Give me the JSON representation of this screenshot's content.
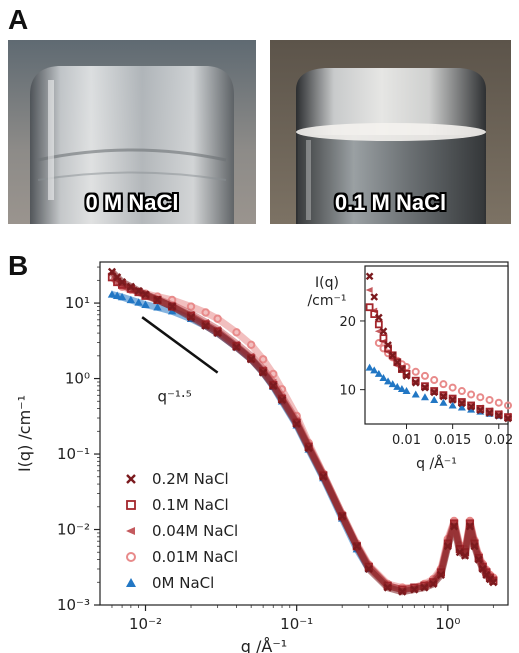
{
  "panels": {
    "a_letter": "A",
    "b_letter": "B"
  },
  "photos": [
    {
      "label": "0 M NaCl"
    },
    {
      "label": "0.1 M NaCl"
    }
  ],
  "colors": {
    "c02": "#7b1a1e",
    "c01": "#a3262c",
    "c004": "#c45a5e",
    "c001": "#e88a8a",
    "c0": "#2277c4"
  },
  "chart_data": [
    {
      "type": "scatter",
      "scale": "log-log",
      "xlabel": "q /Å⁻¹",
      "ylabel": "I(q) /cm⁻¹",
      "xlim": [
        0.005,
        2.5
      ],
      "ylim": [
        0.001,
        35
      ],
      "x_ticks": [
        {
          "value": 0.01,
          "label": "10⁻²"
        },
        {
          "value": 0.1,
          "label": "10⁻¹"
        },
        {
          "value": 1,
          "label": "10⁰"
        }
      ],
      "y_ticks": [
        {
          "value": 10,
          "label": "10¹"
        },
        {
          "value": 1,
          "label": "10⁰"
        },
        {
          "value": 0.1,
          "label": "10⁻¹"
        },
        {
          "value": 0.01,
          "label": "10⁻²"
        },
        {
          "value": 0.001,
          "label": "10⁻³"
        }
      ],
      "annotation": {
        "text": "q⁻¹·⁵",
        "line": [
          [
            0.0095,
            6.5
          ],
          [
            0.03,
            1.2
          ]
        ]
      },
      "legend_position": "lower-left",
      "series": [
        {
          "name": "0.2M NaCl",
          "marker": "x",
          "color": "#7b1a1e",
          "x": [
            0.006,
            0.0065,
            0.007,
            0.008,
            0.009,
            0.01,
            0.012,
            0.015,
            0.02,
            0.025,
            0.03,
            0.04,
            0.05,
            0.06,
            0.07,
            0.08,
            0.1,
            0.12,
            0.15,
            0.2,
            0.25,
            0.3,
            0.4,
            0.5,
            0.6,
            0.7,
            0.8,
            0.9,
            1.0,
            1.1,
            1.2,
            1.3,
            1.4,
            1.5,
            1.6,
            1.7,
            1.8,
            1.9,
            2.0
          ],
          "y": [
            26,
            22,
            19,
            16.5,
            14.5,
            13,
            11,
            9,
            6.5,
            5,
            4,
            2.6,
            1.8,
            1.2,
            0.8,
            0.52,
            0.25,
            0.12,
            0.05,
            0.015,
            0.006,
            0.003,
            0.0017,
            0.0015,
            0.0016,
            0.0017,
            0.0019,
            0.0025,
            0.006,
            0.011,
            0.005,
            0.0045,
            0.011,
            0.006,
            0.004,
            0.003,
            0.0025,
            0.0022,
            0.002
          ]
        },
        {
          "name": "0.1M NaCl",
          "marker": "square-open",
          "color": "#a3262c",
          "x": [
            0.006,
            0.0065,
            0.007,
            0.008,
            0.009,
            0.01,
            0.012,
            0.015,
            0.02,
            0.025,
            0.03,
            0.04,
            0.05,
            0.06,
            0.07,
            0.08,
            0.1,
            0.12,
            0.15,
            0.2,
            0.25,
            0.3,
            0.4,
            0.5,
            0.6,
            0.7,
            0.8,
            0.9,
            1.0,
            1.1,
            1.2,
            1.3,
            1.4,
            1.5,
            1.6,
            1.7,
            1.8,
            1.9,
            2.0
          ],
          "y": [
            22,
            19,
            17.5,
            15.5,
            14,
            12.5,
            11,
            9,
            6.8,
            5.2,
            4.2,
            2.7,
            1.85,
            1.25,
            0.82,
            0.54,
            0.26,
            0.125,
            0.052,
            0.015,
            0.006,
            0.0032,
            0.0018,
            0.0016,
            0.0017,
            0.0018,
            0.002,
            0.0027,
            0.0065,
            0.012,
            0.0055,
            0.005,
            0.012,
            0.0065,
            0.0042,
            0.0032,
            0.0027,
            0.0023,
            0.0021
          ]
        },
        {
          "name": "0.04M NaCl",
          "marker": "triangle-left",
          "color": "#c45a5e",
          "x": [
            0.006,
            0.0065,
            0.007,
            0.008,
            0.009,
            0.01,
            0.012,
            0.015,
            0.02,
            0.025,
            0.03,
            0.04,
            0.05,
            0.06,
            0.07,
            0.08,
            0.1,
            0.12,
            0.15,
            0.2,
            0.25,
            0.3,
            0.4,
            0.5,
            0.6,
            0.7,
            0.8,
            0.9,
            1.0,
            1.1,
            1.2,
            1.3,
            1.4,
            1.5,
            1.6,
            1.7,
            1.8,
            1.9,
            2.0
          ],
          "y": [
            25,
            20,
            17,
            15.5,
            14,
            13,
            11.3,
            9.5,
            7.2,
            5.6,
            4.5,
            2.9,
            2.0,
            1.35,
            0.9,
            0.58,
            0.28,
            0.13,
            0.054,
            0.016,
            0.0062,
            0.0033,
            0.0018,
            0.0016,
            0.0017,
            0.0018,
            0.0021,
            0.0028,
            0.0068,
            0.0125,
            0.0058,
            0.0052,
            0.0125,
            0.0068,
            0.0044,
            0.0033,
            0.0028,
            0.0024,
            0.0022
          ]
        },
        {
          "name": "0.01M NaCl",
          "marker": "circle-open",
          "color": "#e88a8a",
          "x": [
            0.007,
            0.008,
            0.009,
            0.01,
            0.012,
            0.015,
            0.02,
            0.025,
            0.03,
            0.04,
            0.05,
            0.06,
            0.07,
            0.08,
            0.1,
            0.12,
            0.15,
            0.2,
            0.25,
            0.3,
            0.4,
            0.5,
            0.6,
            0.7,
            0.8,
            0.9,
            1.0,
            1.1,
            1.2,
            1.3,
            1.4,
            1.5,
            1.6,
            1.7,
            1.8,
            1.9,
            2.0
          ],
          "y": [
            16.5,
            15,
            14,
            13.3,
            12.2,
            11,
            9,
            7.5,
            6.2,
            4.1,
            2.8,
            1.8,
            1.15,
            0.72,
            0.32,
            0.14,
            0.055,
            0.016,
            0.0065,
            0.0034,
            0.0019,
            0.0017,
            0.0017,
            0.0019,
            0.0022,
            0.003,
            0.0075,
            0.013,
            0.0062,
            0.0055,
            0.013,
            0.0072,
            0.0046,
            0.0035,
            0.0029,
            0.0025,
            0.0023
          ]
        },
        {
          "name": "0M NaCl",
          "marker": "triangle-up",
          "color": "#2277c4",
          "x": [
            0.006,
            0.0065,
            0.007,
            0.008,
            0.009,
            0.01,
            0.012,
            0.015,
            0.02,
            0.025,
            0.03,
            0.04,
            0.05,
            0.06,
            0.07,
            0.08,
            0.1,
            0.12,
            0.15,
            0.2,
            0.25,
            0.3
          ],
          "y": [
            13,
            12.5,
            12,
            11,
            10.2,
            9.5,
            8.8,
            7.8,
            6.2,
            5.0,
            4.0,
            2.6,
            1.8,
            1.2,
            0.78,
            0.5,
            0.24,
            0.115,
            0.048,
            0.014,
            0.0055,
            0.003
          ]
        }
      ]
    },
    {
      "type": "scatter",
      "scale": "linear",
      "inset": true,
      "xlabel": "q /Å⁻¹",
      "ylabel": "I(q) /cm⁻¹",
      "xlim": [
        0.0055,
        0.021
      ],
      "ylim": [
        5,
        28
      ],
      "x_ticks": [
        {
          "value": 0.01,
          "label": "0.01"
        },
        {
          "value": 0.015,
          "label": "0.015"
        },
        {
          "value": 0.02,
          "label": "0.02"
        }
      ],
      "y_ticks": [
        {
          "value": 10,
          "label": "10"
        },
        {
          "value": 20,
          "label": "20"
        }
      ],
      "series": [
        {
          "name": "0.2M NaCl",
          "marker": "x",
          "color": "#7b1a1e",
          "x": [
            0.006,
            0.0065,
            0.007,
            0.0075,
            0.008,
            0.0085,
            0.009,
            0.0095,
            0.01,
            0.011,
            0.012,
            0.013,
            0.014,
            0.015,
            0.016,
            0.017,
            0.018,
            0.019,
            0.02,
            0.021
          ],
          "y": [
            26.5,
            23.5,
            20.5,
            18.5,
            16.5,
            15,
            14,
            13,
            12,
            11,
            10.3,
            9.6,
            9,
            8.5,
            8,
            7.5,
            7,
            6.6,
            6.2,
            5.8
          ]
        },
        {
          "name": "0.1M NaCl",
          "marker": "square-open",
          "color": "#a3262c",
          "x": [
            0.006,
            0.0065,
            0.007,
            0.0075,
            0.008,
            0.0085,
            0.009,
            0.0095,
            0.01,
            0.011,
            0.012,
            0.013,
            0.014,
            0.015,
            0.016,
            0.017,
            0.018,
            0.019,
            0.02,
            0.021
          ],
          "y": [
            22,
            21,
            19.5,
            17.5,
            16,
            15,
            14,
            13,
            12.3,
            11.3,
            10.5,
            9.8,
            9.2,
            8.7,
            8.2,
            7.7,
            7.2,
            6.8,
            6.4,
            6
          ]
        },
        {
          "name": "0.04M NaCl",
          "marker": "triangle-left",
          "color": "#c45a5e",
          "x": [
            0.006,
            0.0065,
            0.007,
            0.0075,
            0.008,
            0.0085,
            0.009,
            0.0095,
            0.01,
            0.011,
            0.012,
            0.013,
            0.014,
            0.015,
            0.016,
            0.017,
            0.018,
            0.019,
            0.02,
            0.021
          ],
          "y": [
            24.5,
            21.5,
            18.5,
            17,
            15.5,
            14.5,
            13.5,
            12.8,
            12,
            11.2,
            10.5,
            9.9,
            9.3,
            8.8,
            8.3,
            7.8,
            7.4,
            7,
            6.6,
            6.2
          ]
        },
        {
          "name": "0.01M NaCl",
          "marker": "circle-open",
          "color": "#e88a8a",
          "x": [
            0.007,
            0.0075,
            0.008,
            0.0085,
            0.009,
            0.0095,
            0.01,
            0.011,
            0.012,
            0.013,
            0.014,
            0.015,
            0.016,
            0.017,
            0.018,
            0.019,
            0.02,
            0.021
          ],
          "y": [
            16.8,
            16,
            15.3,
            14.7,
            14.2,
            13.7,
            13.3,
            12.6,
            12,
            11.4,
            10.8,
            10.3,
            9.8,
            9.3,
            8.9,
            8.5,
            8.1,
            7.7
          ]
        },
        {
          "name": "0M NaCl",
          "marker": "triangle-up",
          "color": "#2277c4",
          "x": [
            0.006,
            0.0065,
            0.007,
            0.0075,
            0.008,
            0.0085,
            0.009,
            0.0095,
            0.01,
            0.011,
            0.012,
            0.013,
            0.014,
            0.015,
            0.016,
            0.017,
            0.018,
            0.019,
            0.02,
            0.021
          ],
          "y": [
            13.2,
            12.8,
            12.3,
            11.7,
            11.2,
            10.8,
            10.4,
            10.1,
            9.8,
            9.3,
            8.9,
            8.5,
            8.1,
            7.7,
            7.4,
            7.1,
            6.8,
            6.5,
            6.2,
            5.9
          ]
        }
      ]
    }
  ]
}
